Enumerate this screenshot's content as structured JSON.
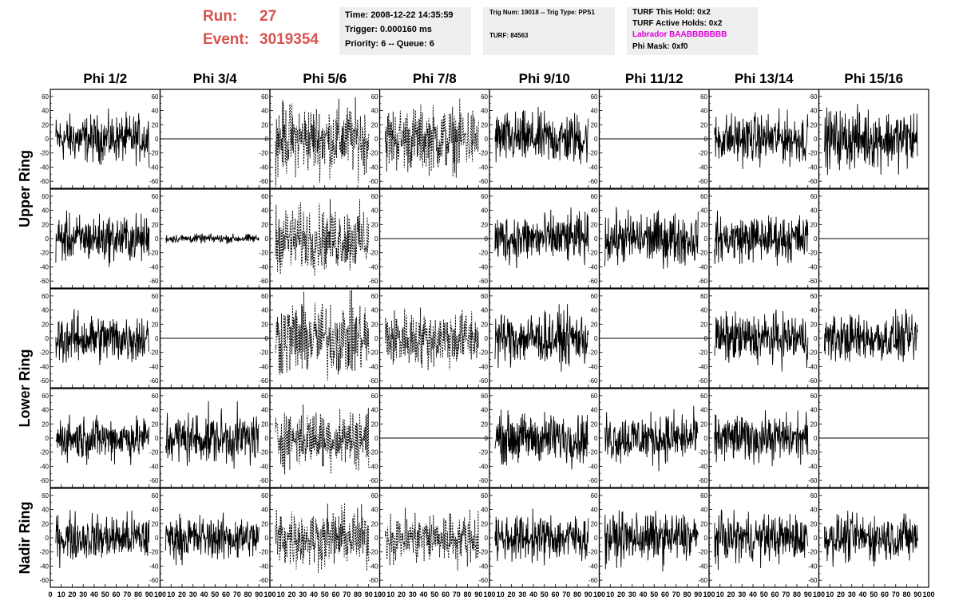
{
  "header": {
    "run_label": "Run:",
    "run_value": "27",
    "event_label": "Event:",
    "event_value": "3019354",
    "accent_color": "#d9534f",
    "time_info": {
      "time": "Time: 2008-12-22 14:35:59",
      "trigger": "Trigger: 0.000160 ms",
      "priority": "Priority: 6 -- Queue: 6"
    },
    "trig_info": {
      "trig": "Trig Num: 19018 -- Trig Type: PPS1",
      "turf": "TURF: 84563"
    },
    "turf_info": {
      "this_hold": "TURF This Hold: 0x2",
      "active_holds": "TURF Active Holds: 0x2",
      "labrador": "Labrador BAABBBBBBB",
      "labrador_color": "#e000e0",
      "phi_mask": "Phi Mask: 0xf0"
    }
  },
  "chart_data": {
    "type": "line",
    "columns": [
      "Phi 1/2",
      "Phi 3/4",
      "Phi 5/6",
      "Phi 7/8",
      "Phi 9/10",
      "Phi 11/12",
      "Phi 13/14",
      "Phi 15/16"
    ],
    "row_groups": [
      {
        "label": "Upper Ring",
        "panels": 2
      },
      {
        "label": "Lower Ring",
        "panels": 2
      },
      {
        "label": "Nadir Ring",
        "panels": 1
      }
    ],
    "xlim": [
      0,
      100
    ],
    "ylim": [
      -70,
      70
    ],
    "y_ticks": [
      -60,
      -40,
      -20,
      0,
      20,
      40,
      60
    ],
    "x_ticks": [
      0,
      10,
      20,
      30,
      40,
      50,
      60,
      70,
      80,
      90,
      100
    ],
    "x_tick_labels": [
      "0",
      "10",
      "20",
      "30",
      "40",
      "50",
      "60",
      "70",
      "80",
      "90",
      "100"
    ],
    "y_tick_labels": [
      "-60",
      "-40",
      "-20",
      "0",
      "20",
      "40",
      "60"
    ],
    "samples": 260,
    "panels": [
      [
        {
          "amp": 16,
          "style": "solid"
        },
        {
          "amp": 0,
          "style": "flat"
        },
        {
          "amp": 24,
          "style": "dashed"
        },
        {
          "amp": 22,
          "style": "dashed"
        },
        {
          "amp": 18,
          "style": "solid"
        },
        {
          "amp": 0,
          "style": "flat"
        },
        {
          "amp": 17,
          "style": "solid"
        },
        {
          "amp": 20,
          "style": "solid"
        }
      ],
      [
        {
          "amp": 16,
          "style": "solid"
        },
        {
          "amp": 3,
          "style": "solid"
        },
        {
          "amp": 22,
          "style": "dashed"
        },
        {
          "amp": 0,
          "style": "flat"
        },
        {
          "amp": 17,
          "style": "solid"
        },
        {
          "amp": 18,
          "style": "solid"
        },
        {
          "amp": 16,
          "style": "solid"
        },
        {
          "amp": 0,
          "style": "flat"
        }
      ],
      [
        {
          "amp": 17,
          "style": "solid"
        },
        {
          "amp": 0,
          "style": "flat"
        },
        {
          "amp": 26,
          "style": "dashed"
        },
        {
          "amp": 20,
          "style": "dashed"
        },
        {
          "amp": 18,
          "style": "solid"
        },
        {
          "amp": 0,
          "style": "flat"
        },
        {
          "amp": 17,
          "style": "solid"
        },
        {
          "amp": 16,
          "style": "solid"
        }
      ],
      [
        {
          "amp": 15,
          "style": "solid"
        },
        {
          "amp": 18,
          "style": "solid"
        },
        {
          "amp": 20,
          "style": "dashed"
        },
        {
          "amp": 0,
          "style": "flat"
        },
        {
          "amp": 17,
          "style": "solid"
        },
        {
          "amp": 17,
          "style": "solid"
        },
        {
          "amp": 16,
          "style": "solid"
        },
        {
          "amp": 0,
          "style": "flat"
        }
      ],
      [
        {
          "amp": 16,
          "style": "solid"
        },
        {
          "amp": 15,
          "style": "solid"
        },
        {
          "amp": 20,
          "style": "dashed"
        },
        {
          "amp": 18,
          "style": "dashed"
        },
        {
          "amp": 16,
          "style": "solid"
        },
        {
          "amp": 17,
          "style": "solid"
        },
        {
          "amp": 16,
          "style": "solid"
        },
        {
          "amp": 16,
          "style": "solid"
        }
      ]
    ]
  }
}
